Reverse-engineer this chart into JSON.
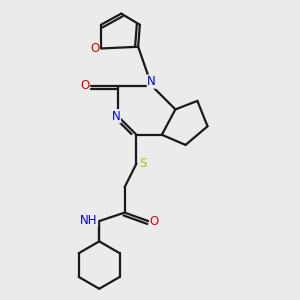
{
  "background_color": "#ebebeb",
  "bond_color": "#1a1a1a",
  "atom_colors": {
    "O": "#e00000",
    "N": "#0000e0",
    "S": "#b8b800",
    "H": "#708090",
    "C": "#1a1a1a"
  },
  "lw": 1.6,
  "fs": 8.5,
  "figsize": [
    3.0,
    3.0
  ],
  "dpi": 100
}
